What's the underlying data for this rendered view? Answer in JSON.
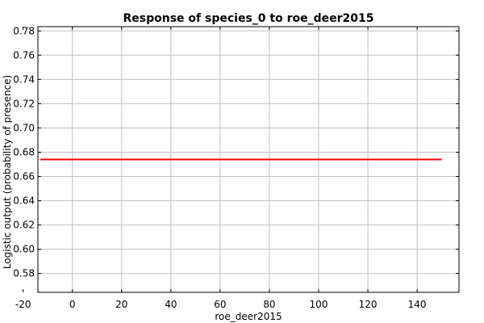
{
  "chart_data": {
    "type": "line",
    "title": "Response of species_0 to roe_deer2015",
    "xlabel": "roe_deer2015",
    "ylabel": "Logistic output (probability of presence)",
    "xlim": [
      -14,
      157
    ],
    "ylim": [
      0.5645,
      0.7835
    ],
    "xticks": [
      -20,
      0,
      20,
      40,
      60,
      80,
      100,
      120,
      140
    ],
    "xtick_labels": [
      "-20",
      "0",
      "20",
      "40",
      "60",
      "80",
      "100",
      "120",
      "140"
    ],
    "yticks": [
      0.58,
      0.6,
      0.62,
      0.64,
      0.66,
      0.68,
      0.7,
      0.72,
      0.74,
      0.76,
      0.78
    ],
    "ytick_labels": [
      "0.58",
      "0.60",
      "0.62",
      "0.64",
      "0.66",
      "0.68",
      "0.70",
      "0.72",
      "0.74",
      "0.76",
      "0.78"
    ],
    "grid": true,
    "legend": "none",
    "colors": {
      "line": "#ff0000",
      "grid": "#c0c0c0",
      "frame": "#000000"
    },
    "series": [
      {
        "x": [
          -13,
          150
        ],
        "y": [
          0.674,
          0.674
        ]
      }
    ]
  }
}
